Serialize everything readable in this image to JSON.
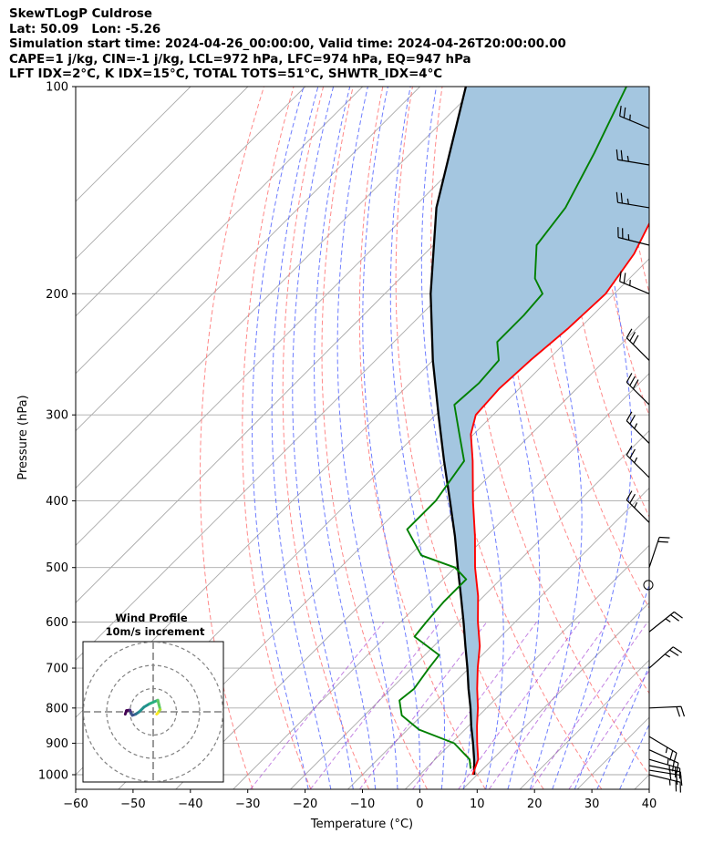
{
  "header": {
    "line1": "SkewTLogP Culdrose",
    "line2": "Lat: 50.09   Lon: -5.26",
    "line3": "Simulation start time: 2024-04-26_00:00:00, Valid time: 2024-04-26T20:00:00.00",
    "line4": "CAPE=1 j/kg, CIN=-1 j/kg, LCL=972 hPa, LFC=974 hPa, EQ=947 hPa",
    "line5": "LFT IDX=2°C, K IDX=15°C, TOTAL TOTS=51°C, SHWTR_IDX=4°C"
  },
  "chart_data": {
    "type": "line",
    "subtype": "skew-T log-P",
    "xlabel": "Temperature (°C)",
    "ylabel": "Pressure (hPa)",
    "xlim": [
      -60,
      40
    ],
    "ylim_hPa": [
      1050,
      100
    ],
    "y_scale": "log",
    "x_ticks": [
      -60,
      -50,
      -40,
      -30,
      -20,
      -10,
      0,
      10,
      20,
      30,
      40
    ],
    "y_ticks": [
      1000,
      900,
      800,
      700,
      600,
      500,
      400,
      300,
      200,
      100
    ],
    "grid": true,
    "colors": {
      "temperature": "#ff0000",
      "dewpoint": "#008000",
      "parcel": "#000000",
      "cape_fill": "#a4c6e0",
      "dry_adiabats": "#ff6b6b",
      "moist_adiabats": "#4a5cff",
      "mixing_ratio": "#9b30d0",
      "isotherms": "#aaaaaa"
    },
    "series": [
      {
        "kind": "temperature",
        "points": [
          {
            "p": 1000,
            "t": 9.2
          },
          {
            "p": 950,
            "t": 7.5
          },
          {
            "p": 900,
            "t": 4.5
          },
          {
            "p": 850,
            "t": 1.5
          },
          {
            "p": 800,
            "t": -1.5
          },
          {
            "p": 750,
            "t": -5.0
          },
          {
            "p": 700,
            "t": -8.5
          },
          {
            "p": 650,
            "t": -12.0
          },
          {
            "p": 600,
            "t": -16.5
          },
          {
            "p": 550,
            "t": -21.0
          },
          {
            "p": 500,
            "t": -26.5
          },
          {
            "p": 450,
            "t": -32.0
          },
          {
            "p": 400,
            "t": -38.5
          },
          {
            "p": 350,
            "t": -45.5
          },
          {
            "p": 320,
            "t": -50.5
          },
          {
            "p": 300,
            "t": -53.0
          },
          {
            "p": 275,
            "t": -53.5
          },
          {
            "p": 250,
            "t": -53.0
          },
          {
            "p": 225,
            "t": -52.0
          },
          {
            "p": 200,
            "t": -51.5
          },
          {
            "p": 175,
            "t": -53.5
          },
          {
            "p": 150,
            "t": -57.5
          },
          {
            "p": 125,
            "t": -62.0
          },
          {
            "p": 100,
            "t": -67.0
          }
        ]
      },
      {
        "kind": "dewpoint",
        "points": [
          {
            "p": 980,
            "t": 7.8
          },
          {
            "p": 950,
            "t": 6.0
          },
          {
            "p": 900,
            "t": 0.5
          },
          {
            "p": 860,
            "t": -8.0
          },
          {
            "p": 820,
            "t": -13.5
          },
          {
            "p": 780,
            "t": -16.5
          },
          {
            "p": 750,
            "t": -16.0
          },
          {
            "p": 700,
            "t": -17.0
          },
          {
            "p": 670,
            "t": -17.5
          },
          {
            "p": 630,
            "t": -25.0
          },
          {
            "p": 600,
            "t": -25.5
          },
          {
            "p": 560,
            "t": -26.0
          },
          {
            "p": 520,
            "t": -26.0
          },
          {
            "p": 500,
            "t": -30.0
          },
          {
            "p": 480,
            "t": -38.0
          },
          {
            "p": 440,
            "t": -45.0
          },
          {
            "p": 400,
            "t": -45.0
          },
          {
            "p": 350,
            "t": -47.0
          },
          {
            "p": 320,
            "t": -52.5
          },
          {
            "p": 290,
            "t": -58.5
          },
          {
            "p": 270,
            "t": -58.0
          },
          {
            "p": 250,
            "t": -58.5
          },
          {
            "p": 235,
            "t": -62.0
          },
          {
            "p": 215,
            "t": -62.0
          },
          {
            "p": 200,
            "t": -62.5
          },
          {
            "p": 190,
            "t": -66.5
          },
          {
            "p": 170,
            "t": -72.0
          },
          {
            "p": 150,
            "t": -73.5
          },
          {
            "p": 125,
            "t": -78.0
          },
          {
            "p": 100,
            "t": -84.0
          }
        ]
      },
      {
        "kind": "parcel",
        "points": [
          {
            "p": 1000,
            "t": 9.5
          },
          {
            "p": 950,
            "t": 6.8
          },
          {
            "p": 900,
            "t": 3.8
          },
          {
            "p": 850,
            "t": 0.5
          },
          {
            "p": 800,
            "t": -2.8
          },
          {
            "p": 750,
            "t": -6.5
          },
          {
            "p": 700,
            "t": -10.3
          },
          {
            "p": 650,
            "t": -14.5
          },
          {
            "p": 600,
            "t": -19.0
          },
          {
            "p": 550,
            "t": -24.0
          },
          {
            "p": 500,
            "t": -29.5
          },
          {
            "p": 450,
            "t": -35.5
          },
          {
            "p": 400,
            "t": -42.5
          },
          {
            "p": 350,
            "t": -50.5
          },
          {
            "p": 300,
            "t": -59.5
          },
          {
            "p": 250,
            "t": -70.0
          },
          {
            "p": 200,
            "t": -82.0
          },
          {
            "p": 150,
            "t": -96.0
          },
          {
            "p": 100,
            "t": -112.0
          }
        ]
      }
    ],
    "wind_barbs": [
      {
        "p": 1000,
        "u": -12.5,
        "v": 3.0
      },
      {
        "p": 985,
        "u": -12.5,
        "v": 2.0
      },
      {
        "p": 970,
        "u": -12.5,
        "v": 2.5
      },
      {
        "p": 950,
        "u": -12.0,
        "v": 3.5
      },
      {
        "p": 920,
        "u": -11.0,
        "v": 5.0
      },
      {
        "p": 880,
        "u": -10.0,
        "v": 6.0
      },
      {
        "p": 800,
        "u": -11.0,
        "v": -0.5
      },
      {
        "p": 700,
        "u": -9.0,
        "v": -8.0
      },
      {
        "p": 620,
        "u": -10.0,
        "v": -8.0
      },
      {
        "p": 530,
        "u": 0.0,
        "v": 0.0
      },
      {
        "p": 500,
        "u": -3.0,
        "v": -9.0
      },
      {
        "p": 430,
        "u": 10.0,
        "v": -10.0
      },
      {
        "p": 370,
        "u": 10.0,
        "v": -10.0
      },
      {
        "p": 330,
        "u": 9.0,
        "v": -9.0
      },
      {
        "p": 290,
        "u": 11.0,
        "v": -11.0
      },
      {
        "p": 250,
        "u": 11.5,
        "v": -11.5
      },
      {
        "p": 200,
        "u": 12.0,
        "v": -5.0
      },
      {
        "p": 170,
        "u": 12.0,
        "v": -3.0
      },
      {
        "p": 150,
        "u": 12.0,
        "v": -2.0
      },
      {
        "p": 130,
        "u": 12.0,
        "v": -2.0
      },
      {
        "p": 115,
        "u": 12.0,
        "v": -5.0
      }
    ],
    "hodograph": {
      "title_line1": "Wind Profile",
      "title_line2": "10m/s increment",
      "rings": 3,
      "points": [
        {
          "u": -12.0,
          "v": -1.0
        },
        {
          "u": -11.5,
          "v": 0.5
        },
        {
          "u": -10.0,
          "v": 0.8
        },
        {
          "u": -9.5,
          "v": -0.5
        },
        {
          "u": -9.0,
          "v": -1.5
        },
        {
          "u": -7.5,
          "v": -1.0
        },
        {
          "u": -6.0,
          "v": 0.0
        },
        {
          "u": -4.0,
          "v": 2.0
        },
        {
          "u": -1.5,
          "v": 3.5
        },
        {
          "u": 2.0,
          "v": 5.0
        },
        {
          "u": 2.5,
          "v": 3.0
        },
        {
          "u": 3.0,
          "v": 1.0
        },
        {
          "u": 2.0,
          "v": -0.5
        },
        {
          "u": 1.5,
          "v": -1.0
        }
      ]
    }
  }
}
